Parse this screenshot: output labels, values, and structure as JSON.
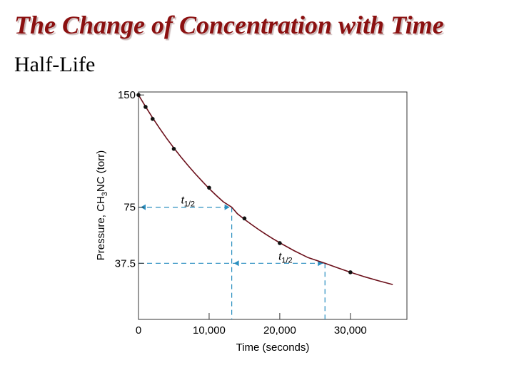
{
  "slide": {
    "title": "The Change of Concentration with Time",
    "subtitle": "Half-Life"
  },
  "colors": {
    "title": "#8b1010",
    "curve": "#6b0f1a",
    "half_life_guides": "#2a8fc0",
    "points": "#111111"
  },
  "chart_data": {
    "type": "line",
    "title": "",
    "xlabel": "Time (seconds)",
    "ylabel_parts": [
      "Pressure, CH",
      "3",
      "NC (torr)"
    ],
    "xlim": [
      0,
      38000
    ],
    "ylim": [
      0,
      152
    ],
    "x_ticks": [
      0,
      10000,
      20000,
      30000
    ],
    "x_tick_labels": [
      "0",
      "10,000",
      "20,000",
      "30,000"
    ],
    "y_ticks": [
      150,
      75,
      37.5
    ],
    "y_tick_labels": [
      "150",
      "75",
      "37.5"
    ],
    "series": [
      {
        "name": "Pressure of CH3NC",
        "points": [
          {
            "x": 0,
            "y": 150
          },
          {
            "x": 1000,
            "y": 142
          },
          {
            "x": 2000,
            "y": 134
          },
          {
            "x": 5000,
            "y": 114
          },
          {
            "x": 10000,
            "y": 88
          },
          {
            "x": 15000,
            "y": 67.5
          },
          {
            "x": 20000,
            "y": 51
          },
          {
            "x": 30000,
            "y": 31.5
          }
        ],
        "curve": [
          {
            "x": 0,
            "y": 150
          },
          {
            "x": 1000,
            "y": 142.2
          },
          {
            "x": 2000,
            "y": 134.7
          },
          {
            "x": 3000,
            "y": 127.6
          },
          {
            "x": 4000,
            "y": 120.9
          },
          {
            "x": 5000,
            "y": 114.6
          },
          {
            "x": 6000,
            "y": 108.6
          },
          {
            "x": 7000,
            "y": 102.9
          },
          {
            "x": 8000,
            "y": 97.5
          },
          {
            "x": 9000,
            "y": 92.4
          },
          {
            "x": 10000,
            "y": 87.5
          },
          {
            "x": 11000,
            "y": 82.9
          },
          {
            "x": 12000,
            "y": 78.6
          },
          {
            "x": 13200,
            "y": 75
          },
          {
            "x": 14000,
            "y": 70.6
          },
          {
            "x": 15000,
            "y": 66.9
          },
          {
            "x": 16000,
            "y": 63.4
          },
          {
            "x": 17000,
            "y": 60.1
          },
          {
            "x": 18000,
            "y": 57
          },
          {
            "x": 19000,
            "y": 54
          },
          {
            "x": 20000,
            "y": 51.2
          },
          {
            "x": 22000,
            "y": 46
          },
          {
            "x": 24000,
            "y": 41.3
          },
          {
            "x": 26400,
            "y": 37.5
          },
          {
            "x": 28000,
            "y": 34.8
          },
          {
            "x": 30000,
            "y": 31.5
          },
          {
            "x": 32000,
            "y": 28.5
          },
          {
            "x": 34000,
            "y": 25.8
          },
          {
            "x": 36000,
            "y": 23.3
          }
        ]
      }
    ],
    "annotations": {
      "half_life_label_main": "t",
      "half_life_label_sub": "1/2",
      "first_half_life": {
        "from_x": 0,
        "to_x": 13200,
        "level_y": 75
      },
      "second_half_life": {
        "from_x": 13200,
        "to_x": 26400,
        "level_y": 37.5
      }
    }
  }
}
